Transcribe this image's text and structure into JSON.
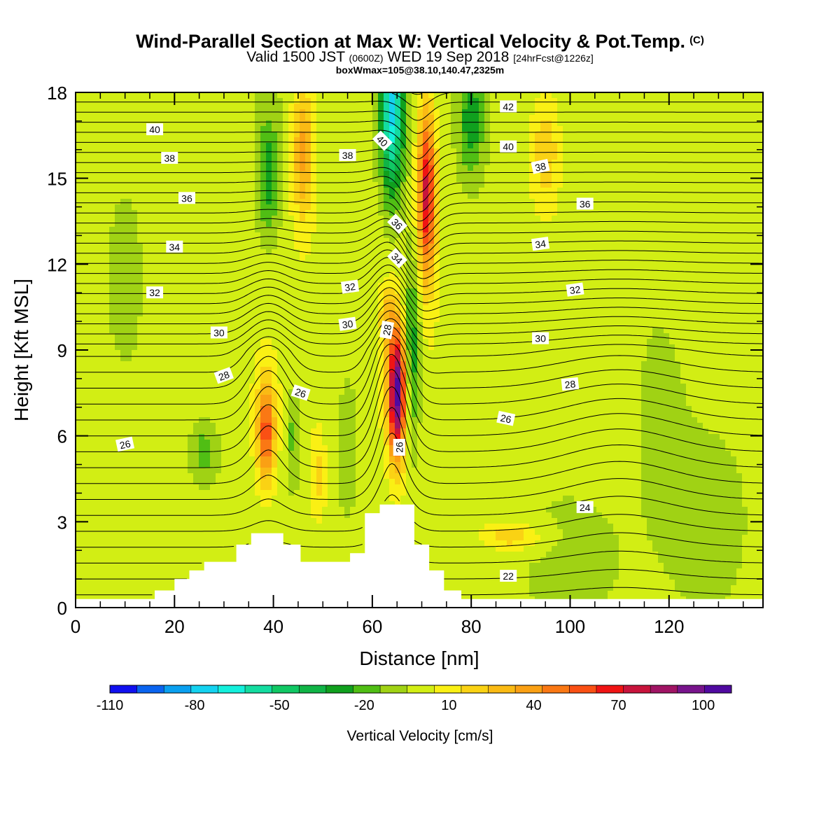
{
  "header": {
    "title_main": "Wind-Parallel Section at Max W: Vertical Velocity & Pot.Temp.",
    "title_mark": "(C)",
    "valid_prefix": "Valid 1500 JST",
    "valid_utc": "(0600Z)",
    "valid_date": "WED 19 Sep 2018",
    "valid_fcst": "[24hrFcst@1226z]",
    "box_info": "boxWmax=105@38.10,140.47,2325m"
  },
  "chart_data": {
    "type": "heatmap",
    "xlabel": "Distance [nm]",
    "ylabel": "Height [Kft MSL]",
    "xlim": [
      0,
      139
    ],
    "ylim": [
      0,
      18
    ],
    "x_ticks": [
      0,
      20,
      40,
      60,
      80,
      100,
      120
    ],
    "y_ticks": [
      0,
      3,
      6,
      9,
      12,
      15,
      18
    ],
    "colorbar": {
      "label": "Vertical Velocity [cm/s]",
      "tick_labels": [
        "-110",
        "-80",
        "-50",
        "-20",
        "10",
        "40",
        "70",
        "100"
      ],
      "tick_values": [
        -110,
        -80,
        -50,
        -20,
        10,
        40,
        70,
        100
      ],
      "levels": [
        -110,
        -100,
        -90,
        -80,
        -70,
        -60,
        -50,
        -40,
        -30,
        -20,
        -10,
        0,
        10,
        20,
        30,
        40,
        50,
        60,
        70,
        80,
        90,
        100,
        110
      ],
      "colors": [
        "#1010f0",
        "#0a64f0",
        "#0aa0f0",
        "#14d2f0",
        "#14f0dc",
        "#14dca0",
        "#10c864",
        "#10b446",
        "#10a01e",
        "#50be14",
        "#a0d214",
        "#d2ee14",
        "#faf014",
        "#fad214",
        "#faba14",
        "#faa014",
        "#fa7814",
        "#fa5014",
        "#f01414",
        "#c8143c",
        "#a01464",
        "#78148c",
        "#500aa0"
      ]
    },
    "shading_features": [
      {
        "x": 38.5,
        "y": 6.2,
        "sx": 1.8,
        "sy": 1.8,
        "w": 60
      },
      {
        "x": 49,
        "y": 4.5,
        "sx": 1.5,
        "sy": 1.4,
        "w": 20
      },
      {
        "x": 44,
        "y": 6,
        "sx": 1.3,
        "sy": 1.8,
        "w": -20
      },
      {
        "x": 55,
        "y": 6,
        "sx": 2.2,
        "sy": 2.5,
        "w": -15
      },
      {
        "x": 65,
        "y": 7.5,
        "sx": 1.8,
        "sy": 2.3,
        "w": 110
      },
      {
        "x": 63,
        "y": 10.2,
        "sx": 1.5,
        "sy": 1,
        "w": 25
      },
      {
        "x": 71,
        "y": 14.5,
        "sx": 1.8,
        "sy": 3,
        "w": 80
      },
      {
        "x": 64,
        "y": 17.5,
        "sx": 2.3,
        "sy": 3,
        "w": -75
      },
      {
        "x": 68,
        "y": 9,
        "sx": 1.7,
        "sy": 3.2,
        "w": -35
      },
      {
        "x": 39,
        "y": 15,
        "sx": 2.2,
        "sy": 2.2,
        "w": -30
      },
      {
        "x": 46,
        "y": 16,
        "sx": 2.2,
        "sy": 2.5,
        "w": 40
      },
      {
        "x": 80,
        "y": 17,
        "sx": 2.5,
        "sy": 2,
        "w": -30
      },
      {
        "x": 95,
        "y": 16,
        "sx": 3,
        "sy": 2,
        "w": 25
      },
      {
        "x": 26,
        "y": 5.5,
        "sx": 3,
        "sy": 1.2,
        "w": -20
      },
      {
        "x": 10,
        "y": 11,
        "sx": 4,
        "sy": 3,
        "w": -15
      },
      {
        "x": 118,
        "y": 8,
        "sx": 6,
        "sy": 3.5,
        "w": -10
      },
      {
        "x": 88,
        "y": 2.5,
        "sx": 6,
        "sy": 0.5,
        "w": 25
      },
      {
        "x": 128,
        "y": 4.5,
        "sx": 10,
        "sy": 3.5,
        "w": -8
      },
      {
        "x": 100,
        "y": 3,
        "sx": 14,
        "sy": 3,
        "w": -5
      }
    ],
    "theta_label_values": [
      "22",
      "24",
      "26",
      "28",
      "30",
      "32",
      "34",
      "36",
      "38",
      "40",
      "42"
    ],
    "theta_labels": [
      {
        "text": "40",
        "x": 16,
        "y": 16.7,
        "rot": 0
      },
      {
        "text": "38",
        "x": 19,
        "y": 15.7,
        "rot": 0
      },
      {
        "text": "36",
        "x": 22.5,
        "y": 14.3,
        "rot": 0
      },
      {
        "text": "34",
        "x": 20,
        "y": 12.6,
        "rot": 0
      },
      {
        "text": "32",
        "x": 16,
        "y": 11,
        "rot": 0
      },
      {
        "text": "30",
        "x": 29,
        "y": 9.6,
        "rot": 0
      },
      {
        "text": "28",
        "x": 30,
        "y": 8.1,
        "rot": -20
      },
      {
        "text": "26",
        "x": 10,
        "y": 5.7,
        "rot": -12
      },
      {
        "text": "26",
        "x": 45.5,
        "y": 7.5,
        "rot": 18
      },
      {
        "text": "38",
        "x": 55,
        "y": 15.8,
        "rot": 0
      },
      {
        "text": "32",
        "x": 55.5,
        "y": 11.2,
        "rot": -8
      },
      {
        "text": "30",
        "x": 55,
        "y": 9.9,
        "rot": -8
      },
      {
        "text": "28",
        "x": 63,
        "y": 9.7,
        "rot": -80
      },
      {
        "text": "26",
        "x": 65.5,
        "y": 5.6,
        "rot": -90
      },
      {
        "text": "40",
        "x": 62,
        "y": 16.3,
        "rot": 45
      },
      {
        "text": "36",
        "x": 65,
        "y": 13.4,
        "rot": 45
      },
      {
        "text": "34",
        "x": 65,
        "y": 12.2,
        "rot": 45
      },
      {
        "text": "42",
        "x": 87.5,
        "y": 17.5,
        "rot": 0
      },
      {
        "text": "40",
        "x": 87.5,
        "y": 16.1,
        "rot": 0
      },
      {
        "text": "38",
        "x": 94,
        "y": 15.4,
        "rot": -12
      },
      {
        "text": "36",
        "x": 103,
        "y": 14.1,
        "rot": 0
      },
      {
        "text": "34",
        "x": 94,
        "y": 12.7,
        "rot": -8
      },
      {
        "text": "32",
        "x": 101,
        "y": 11.1,
        "rot": -8
      },
      {
        "text": "30",
        "x": 94,
        "y": 9.4,
        "rot": 0
      },
      {
        "text": "28",
        "x": 100,
        "y": 7.8,
        "rot": -6
      },
      {
        "text": "26",
        "x": 87,
        "y": 6.6,
        "rot": 12
      },
      {
        "text": "24",
        "x": 103,
        "y": 3.5,
        "rot": 0
      },
      {
        "text": "22",
        "x": 87.5,
        "y": 1.1,
        "rot": 0
      }
    ],
    "terrain": [
      [
        0,
        0.3
      ],
      [
        16,
        0.3
      ],
      [
        16,
        0.6
      ],
      [
        20,
        0.6
      ],
      [
        20,
        1
      ],
      [
        23,
        1
      ],
      [
        23,
        1.3
      ],
      [
        26,
        1.3
      ],
      [
        26,
        1.6
      ],
      [
        32.5,
        1.6
      ],
      [
        32.5,
        2.2
      ],
      [
        35.5,
        2.2
      ],
      [
        35.5,
        2.6
      ],
      [
        42,
        2.6
      ],
      [
        42,
        2.2
      ],
      [
        45.5,
        2.2
      ],
      [
        45.5,
        1.6
      ],
      [
        55.5,
        1.6
      ],
      [
        55.5,
        1.9
      ],
      [
        58.5,
        1.9
      ],
      [
        58.5,
        2.6
      ],
      [
        58.5,
        3.3
      ],
      [
        61.5,
        3.3
      ],
      [
        61.5,
        3.6
      ],
      [
        68.5,
        3.6
      ],
      [
        68.5,
        2.2
      ],
      [
        71.5,
        2.2
      ],
      [
        71.5,
        1.3
      ],
      [
        74.5,
        1.3
      ],
      [
        74.5,
        0.6
      ],
      [
        78,
        0.6
      ],
      [
        78,
        0.3
      ],
      [
        139,
        0.3
      ]
    ]
  }
}
